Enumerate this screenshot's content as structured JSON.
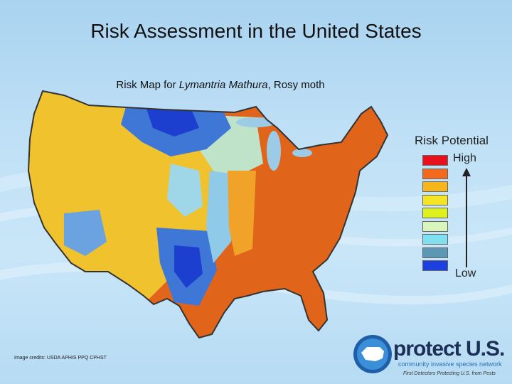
{
  "title": "Risk Assessment in the United States",
  "subtitle": {
    "prefix": "Risk Map for ",
    "species": "Lymantria Mathura",
    "suffix": ", Rosy moth"
  },
  "legend": {
    "title": "Risk Potential",
    "high_label": "High",
    "low_label": "Low",
    "colors": [
      "#e8101a",
      "#f26a1d",
      "#f7b51c",
      "#f3e523",
      "#dff01f",
      "#d8f6bc",
      "#7fe0f0",
      "#5b98b6",
      "#1c3fe0"
    ]
  },
  "map_colors": {
    "high": "#e0641a",
    "mid_high": "#f0a328",
    "mid": "#f2d23a",
    "low_mid": "#9fd6e8",
    "low": "#3f77d6",
    "very_low": "#1c3fd0",
    "lakes": "#9ccbe8"
  },
  "credits": "Image credits: USDA APHIS PPQ CPHST",
  "logo": {
    "name": "protect U.S.",
    "subtitle": "community invasive species network",
    "tagline": "First Detectors Protecting U.S. from Pests"
  }
}
